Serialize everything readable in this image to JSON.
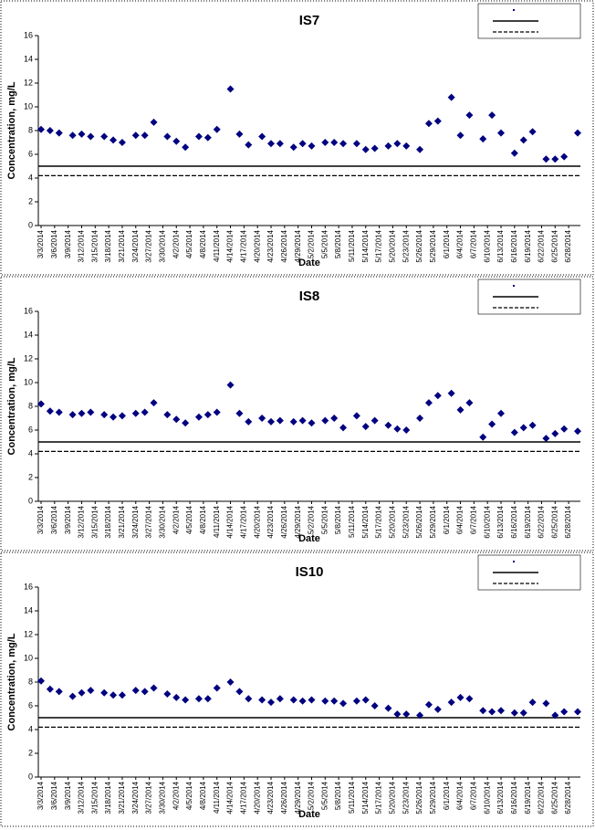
{
  "chart_data": [
    {
      "type": "scatter",
      "title": "IS7",
      "y_label": "Concentration, mg/L",
      "x_label": "Date",
      "color": "#000080",
      "x": [
        "3/3/2014",
        "3/5/2014",
        "3/7/2014",
        "3/10/2014",
        "3/12/2014",
        "3/14/2014",
        "3/17/2014",
        "3/19/2014",
        "3/21/2014",
        "3/24/2014",
        "3/26/2014",
        "3/28/2014",
        "3/31/2014",
        "4/2/2014",
        "4/4/2014",
        "4/7/2014",
        "4/9/2014",
        "4/11/2014",
        "4/14/2014",
        "4/16/2014",
        "4/18/2014",
        "4/21/2014",
        "4/23/2014",
        "4/25/2014",
        "4/28/2014",
        "4/30/2014",
        "5/2/2014",
        "5/5/2014",
        "5/7/2014",
        "5/9/2014",
        "5/12/2014",
        "5/14/2014",
        "5/16/2014",
        "5/19/2014",
        "5/21/2014",
        "5/23/2014",
        "5/26/2014",
        "5/28/2014",
        "5/30/2014",
        "6/2/2014",
        "6/4/2014",
        "6/6/2014",
        "6/9/2014",
        "6/11/2014",
        "6/13/2014",
        "6/16/2014",
        "6/18/2014",
        "6/20/2014",
        "6/23/2014",
        "6/25/2014",
        "6/27/2014",
        "6/30/2014"
      ],
      "values": [
        8.1,
        8.0,
        7.8,
        7.6,
        7.7,
        7.5,
        7.5,
        7.2,
        7.0,
        7.6,
        7.6,
        8.7,
        7.5,
        7.1,
        6.6,
        7.5,
        7.4,
        8.1,
        11.5,
        7.7,
        6.8,
        7.5,
        6.9,
        6.9,
        6.6,
        6.9,
        6.7,
        7.0,
        7.0,
        6.9,
        6.9,
        6.4,
        6.5,
        6.7,
        6.9,
        6.7,
        6.4,
        8.6,
        8.8,
        10.8,
        7.6,
        9.3,
        7.3,
        9.3,
        7.8,
        6.1,
        7.2,
        7.9,
        5.6,
        5.6,
        5.8,
        7.8
      ],
      "reference_lines": [
        {
          "value": 5,
          "style": "solid"
        },
        {
          "value": 4.2,
          "style": "dashed"
        }
      ],
      "xlim": [
        "3/3/2014",
        "6/30/2014"
      ],
      "xticks": [
        "3/3/2014",
        "3/6/2014",
        "3/9/2014",
        "3/12/2014",
        "3/15/2014",
        "3/18/2014",
        "3/21/2014",
        "3/24/2014",
        "3/27/2014",
        "3/30/2014",
        "4/2/2014",
        "4/5/2014",
        "4/8/2014",
        "4/11/2014",
        "4/14/2014",
        "4/17/2014",
        "4/20/2014",
        "4/23/2014",
        "4/26/2014",
        "4/29/2014",
        "5/2/2014",
        "5/5/2014",
        "5/8/2014",
        "5/11/2014",
        "5/14/2014",
        "5/17/2014",
        "5/20/2014",
        "5/23/2014",
        "5/26/2014",
        "5/29/2014",
        "6/1/2014",
        "6/4/2014",
        "6/7/2014",
        "6/10/2014",
        "6/13/2014",
        "6/16/2014",
        "6/19/2014",
        "6/22/2014",
        "6/25/2014",
        "6/28/2014"
      ],
      "ylim": [
        0,
        16
      ],
      "yticks": [
        0,
        2,
        4,
        6,
        8,
        10,
        12,
        14,
        16
      ]
    },
    {
      "type": "scatter",
      "title": "IS8",
      "y_label": "Concentration, mg/L",
      "x_label": "Date",
      "color": "#000080",
      "x": [
        "3/3/2014",
        "3/5/2014",
        "3/7/2014",
        "3/10/2014",
        "3/12/2014",
        "3/14/2014",
        "3/17/2014",
        "3/19/2014",
        "3/21/2014",
        "3/24/2014",
        "3/26/2014",
        "3/28/2014",
        "3/31/2014",
        "4/2/2014",
        "4/4/2014",
        "4/7/2014",
        "4/9/2014",
        "4/11/2014",
        "4/14/2014",
        "4/16/2014",
        "4/18/2014",
        "4/21/2014",
        "4/23/2014",
        "4/25/2014",
        "4/28/2014",
        "4/30/2014",
        "5/2/2014",
        "5/5/2014",
        "5/7/2014",
        "5/9/2014",
        "5/12/2014",
        "5/14/2014",
        "5/16/2014",
        "5/19/2014",
        "5/21/2014",
        "5/23/2014",
        "5/26/2014",
        "5/28/2014",
        "5/30/2014",
        "6/2/2014",
        "6/4/2014",
        "6/6/2014",
        "6/9/2014",
        "6/11/2014",
        "6/13/2014",
        "6/16/2014",
        "6/18/2014",
        "6/20/2014",
        "6/23/2014",
        "6/25/2014",
        "6/27/2014",
        "6/30/2014"
      ],
      "values": [
        8.2,
        7.6,
        7.5,
        7.3,
        7.4,
        7.5,
        7.3,
        7.1,
        7.2,
        7.4,
        7.5,
        8.3,
        7.3,
        6.9,
        6.6,
        7.1,
        7.3,
        7.5,
        9.8,
        7.4,
        6.7,
        7.0,
        6.7,
        6.8,
        6.7,
        6.8,
        6.6,
        6.8,
        7.0,
        6.2,
        7.2,
        6.3,
        6.8,
        6.4,
        6.1,
        6.0,
        7.0,
        8.3,
        8.9,
        9.1,
        7.7,
        8.3,
        5.4,
        6.5,
        7.4,
        5.8,
        6.2,
        6.4,
        5.3,
        5.7,
        6.1,
        5.9
      ],
      "reference_lines": [
        {
          "value": 5,
          "style": "solid"
        },
        {
          "value": 4.2,
          "style": "dashed"
        }
      ],
      "xlim": [
        "3/3/2014",
        "6/30/2014"
      ],
      "xticks": [
        "3/3/2014",
        "3/6/2014",
        "3/9/2014",
        "3/12/2014",
        "3/15/2014",
        "3/18/2014",
        "3/21/2014",
        "3/24/2014",
        "3/27/2014",
        "3/30/2014",
        "4/2/2014",
        "4/5/2014",
        "4/8/2014",
        "4/11/2014",
        "4/14/2014",
        "4/17/2014",
        "4/20/2014",
        "4/23/2014",
        "4/26/2014",
        "4/29/2014",
        "5/2/2014",
        "5/5/2014",
        "5/8/2014",
        "5/11/2014",
        "5/14/2014",
        "5/17/2014",
        "5/20/2014",
        "5/23/2014",
        "5/26/2014",
        "5/29/2014",
        "6/1/2014",
        "6/4/2014",
        "6/7/2014",
        "6/10/2014",
        "6/13/2014",
        "6/16/2014",
        "6/19/2014",
        "6/22/2014",
        "6/25/2014",
        "6/28/2014"
      ],
      "ylim": [
        0,
        16
      ],
      "yticks": [
        0,
        2,
        4,
        6,
        8,
        10,
        12,
        14,
        16
      ]
    },
    {
      "type": "scatter",
      "title": "IS10",
      "y_label": "Concentration, mg/L",
      "x_label": "Date",
      "color": "#000080",
      "x": [
        "3/3/2014",
        "3/5/2014",
        "3/7/2014",
        "3/10/2014",
        "3/12/2014",
        "3/14/2014",
        "3/17/2014",
        "3/19/2014",
        "3/21/2014",
        "3/24/2014",
        "3/26/2014",
        "3/28/2014",
        "3/31/2014",
        "4/2/2014",
        "4/4/2014",
        "4/7/2014",
        "4/9/2014",
        "4/11/2014",
        "4/14/2014",
        "4/16/2014",
        "4/18/2014",
        "4/21/2014",
        "4/23/2014",
        "4/25/2014",
        "4/28/2014",
        "4/30/2014",
        "5/2/2014",
        "5/5/2014",
        "5/7/2014",
        "5/9/2014",
        "5/12/2014",
        "5/14/2014",
        "5/16/2014",
        "5/19/2014",
        "5/21/2014",
        "5/23/2014",
        "5/26/2014",
        "5/28/2014",
        "5/30/2014",
        "6/2/2014",
        "6/4/2014",
        "6/6/2014",
        "6/9/2014",
        "6/11/2014",
        "6/13/2014",
        "6/16/2014",
        "6/18/2014",
        "6/20/2014",
        "6/23/2014",
        "6/25/2014",
        "6/27/2014",
        "6/30/2014"
      ],
      "values": [
        8.1,
        7.4,
        7.2,
        6.8,
        7.1,
        7.3,
        7.1,
        6.9,
        6.9,
        7.3,
        7.2,
        7.5,
        7.0,
        6.7,
        6.5,
        6.6,
        6.6,
        7.5,
        8.0,
        7.2,
        6.6,
        6.5,
        6.3,
        6.6,
        6.5,
        6.4,
        6.5,
        6.4,
        6.4,
        6.2,
        6.4,
        6.5,
        6.0,
        5.8,
        5.3,
        5.3,
        5.2,
        6.1,
        5.7,
        6.3,
        6.7,
        6.6,
        5.6,
        5.5,
        5.6,
        5.4,
        5.4,
        6.3,
        6.2,
        5.2,
        5.5,
        5.5
      ],
      "reference_lines": [
        {
          "value": 5,
          "style": "solid"
        },
        {
          "value": 4.2,
          "style": "dashed"
        }
      ],
      "xlim": [
        "3/3/2014",
        "6/30/2014"
      ],
      "xticks": [
        "3/3/2014",
        "3/6/2014",
        "3/9/2014",
        "3/12/2014",
        "3/15/2014",
        "3/18/2014",
        "3/21/2014",
        "3/24/2014",
        "3/27/2014",
        "3/30/2014",
        "4/2/2014",
        "4/5/2014",
        "4/8/2014",
        "4/11/2014",
        "4/14/2014",
        "4/17/2014",
        "4/20/2014",
        "4/23/2014",
        "4/26/2014",
        "4/29/2014",
        "5/2/2014",
        "5/5/2014",
        "5/8/2014",
        "5/11/2014",
        "5/14/2014",
        "5/17/2014",
        "5/20/2014",
        "5/23/2014",
        "5/26/2014",
        "5/29/2014",
        "6/1/2014",
        "6/4/2014",
        "6/7/2014",
        "6/10/2014",
        "6/13/2014",
        "6/16/2014",
        "6/19/2014",
        "6/22/2014",
        "6/25/2014",
        "6/28/2014"
      ],
      "ylim": [
        0,
        16
      ],
      "yticks": [
        0,
        2,
        4,
        6,
        8,
        10,
        12,
        14,
        16
      ]
    }
  ]
}
